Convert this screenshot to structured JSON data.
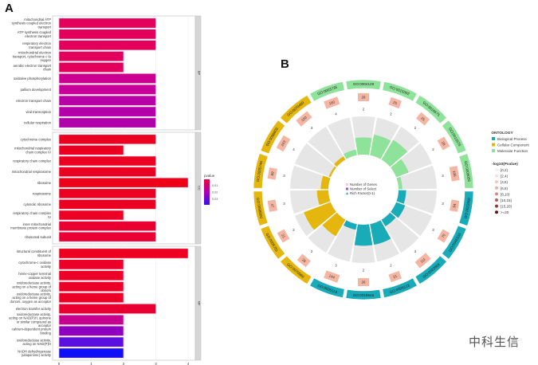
{
  "panel_a_letter": "A",
  "panel_b_letter": "B",
  "watermark": "中科生信",
  "chart_data": [
    {
      "type": "bar",
      "orientation": "horizontal",
      "facets": [
        {
          "strip": "BP",
          "categories": [
            "mitochondrial ATP synthesis coupled electron transport",
            "ATP synthesis coupled electron transport",
            "respiratory electron transport chain",
            "mitochondrial electron transport, cytochrome c to oxygen",
            "aerobic electron transport chain",
            "oxidative phosphorylation",
            "pallium development",
            "electron transport chain",
            "viral transcription",
            "cellular respiration"
          ],
          "values": [
            3,
            3,
            3,
            2,
            2,
            3,
            3,
            3,
            3,
            3
          ],
          "colors": [
            "#e4005a",
            "#e4005a",
            "#e4005a",
            "#e2005c",
            "#e2005c",
            "#cc0090",
            "#c8009a",
            "#b800a8",
            "#b400aa",
            "#b000ac"
          ]
        },
        {
          "strip": "CC",
          "categories": [
            "cytochrome complex",
            "mitochondrial respiratory chain complex IV",
            "respiratory chain complex",
            "mitochondrial respirasome",
            "ribosome",
            "respirasome",
            "cytosolic ribosome",
            "respiratory chain complex IV",
            "inner mitochondrial membrane protein complex",
            "ribosomal subunit"
          ],
          "values": [
            3,
            2,
            3,
            3,
            4,
            3,
            3,
            2,
            3,
            3
          ],
          "colors": [
            "#ec0022",
            "#ec0022",
            "#ec0022",
            "#ec0022",
            "#ee0018",
            "#ec0022",
            "#ec0022",
            "#ec0024",
            "#ea0030",
            "#ea0034"
          ]
        },
        {
          "strip": "MF",
          "categories": [
            "structural constituent of ribosome",
            "cytochrome-c oxidase activity",
            "heme-copper terminal oxidase activity",
            "oxidoreductase activity, acting on a heme group of donors",
            "oxidoreductase activity, acting on a heme group of donors, oxygen as acceptor",
            "electron transfer activity",
            "oxidoreductase activity, acting on NAD(P)H, quinone or similar compound as acceptor",
            "calcium-dependent protein binding",
            "oxidoreductase activity, acting on NAD(P)H",
            "NADH dehydrogenase (ubiquinone) activity"
          ],
          "values": [
            4,
            2,
            2,
            2,
            2,
            3,
            2,
            2,
            2,
            2
          ],
          "colors": [
            "#ee0020",
            "#ec0028",
            "#ec0028",
            "#ec0028",
            "#ec0028",
            "#ea0030",
            "#c80090",
            "#9000c0",
            "#5a10e0",
            "#1010f8"
          ]
        }
      ],
      "xlim": [
        0,
        4
      ],
      "xticks": [
        "0",
        "1",
        "2",
        "3",
        "4"
      ],
      "legend": {
        "title": "pvalue",
        "ticks": [
          "0.01",
          "0.02",
          "0.03"
        ],
        "colors": [
          "#e8003a",
          "#b000b0",
          "#3010f0"
        ],
        "placement": "right"
      }
    },
    {
      "type": "circular",
      "ontology_legend": {
        "title": "ONTOLOGY",
        "items": [
          {
            "label": "Biological Process",
            "color": "#1aabb8"
          },
          {
            "label": "Cellular Component",
            "color": "#e5b60e"
          },
          {
            "label": "Molecular Function",
            "color": "#8fe29a"
          }
        ]
      },
      "pvalue_legend": {
        "title": "-log10(Pvalue)",
        "items": [
          "[0,2)",
          "[2,4)",
          "[4,6)",
          "[6,8)",
          "[8,10)",
          "[10,15)",
          "[15,20)",
          ">=20"
        ],
        "colors": [
          "#f2f2f2",
          "#f6dede",
          "#f3c4c4",
          "#eeabab",
          "#d88888",
          "#c05a5a",
          "#9a3434",
          "#6a0f0f"
        ]
      },
      "inner_legend": [
        "Number of Genes",
        "Number of Select",
        "Rich Factor(0-1)"
      ],
      "sectors": [
        {
          "id": "GO:0004129",
          "ontology": "Molecular Function",
          "genes": 28,
          "select": 2,
          "rich": 0.45
        },
        {
          "id": "GO:0015002",
          "ontology": "Molecular Function",
          "genes": 25,
          "select": 2,
          "rich": 0.55
        },
        {
          "id": "GO:0016675",
          "ontology": "Molecular Function",
          "genes": 25,
          "select": 2,
          "rich": 0.6
        },
        {
          "id": "GO:0016676",
          "ontology": "Molecular Function",
          "genes": 26,
          "select": 2,
          "rich": 0.35
        },
        {
          "id": "GO:0009055",
          "ontology": "Molecular Function",
          "genes": 106,
          "select": 3,
          "rich": 0.1
        },
        {
          "id": "GO:0022900",
          "ontology": "Biological Process",
          "genes": 94,
          "select": 3,
          "rich": 0.2
        },
        {
          "id": "GO:0045333",
          "ontology": "Biological Process",
          "genes": 70,
          "select": 3,
          "rich": 0.25
        },
        {
          "id": "GO:0022904",
          "ontology": "Biological Process",
          "genes": 111,
          "select": 3,
          "rich": 0.2
        },
        {
          "id": "GO:0006123",
          "ontology": "Biological Process",
          "genes": 21,
          "select": 2,
          "rich": 0.55
        },
        {
          "id": "GO:0019646",
          "ontology": "Biological Process",
          "genes": 26,
          "select": 2,
          "rich": 0.55
        },
        {
          "id": "GO:0006119",
          "ontology": "Biological Process",
          "genes": 144,
          "select": 3,
          "rich": 0.15
        },
        {
          "id": "GO:0070069",
          "ontology": "Cellular Component",
          "genes": 26,
          "select": 2,
          "rich": 0.5
        },
        {
          "id": "GO:0005751",
          "ontology": "Cellular Component",
          "genes": 21,
          "select": 2,
          "rich": 0.75
        },
        {
          "id": "GO:0098800",
          "ontology": "Cellular Component",
          "genes": 47,
          "select": 3,
          "rich": 0.3
        },
        {
          "id": "GO:0005746",
          "ontology": "Cellular Component",
          "genes": 69,
          "select": 3,
          "rich": 0.2
        },
        {
          "id": "GO:0098803",
          "ontology": "Cellular Component",
          "genes": 243,
          "select": 4,
          "rich": 0.05
        },
        {
          "id": "GO:0070469",
          "ontology": "Cellular Component",
          "genes": 100,
          "select": 3,
          "rich": 0.1
        },
        {
          "id": "GO:0003735",
          "ontology": "Molecular Function",
          "genes": 160,
          "select": 4,
          "rich": 0.15
        }
      ]
    }
  ]
}
